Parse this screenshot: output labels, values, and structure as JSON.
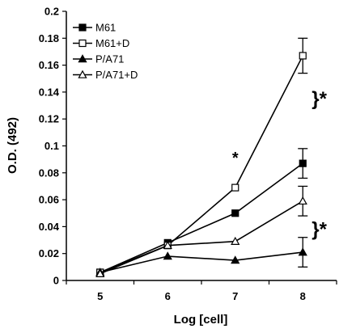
{
  "chart_data": {
    "type": "line",
    "xlabel": "Log [cell]",
    "ylabel": "O.D. (492)",
    "xlim": [
      4.5,
      8.5
    ],
    "ylim": [
      0,
      0.2
    ],
    "x_ticks": [
      "5",
      "6",
      "7",
      "8"
    ],
    "y_ticks": [
      "0",
      "0.02",
      "0.04",
      "0.06",
      "0.08",
      "0.1",
      "0.12",
      "0.14",
      "0.16",
      "0.18",
      "0.2"
    ],
    "grid": false,
    "legend_position": "top-left",
    "series": [
      {
        "name": "M61",
        "marker": "filled-square",
        "x": [
          5,
          6,
          7,
          8
        ],
        "y": [
          0.006,
          0.028,
          0.05,
          0.087
        ],
        "error": [
          null,
          null,
          null,
          0.011
        ]
      },
      {
        "name": "M61+D",
        "marker": "open-square",
        "x": [
          5,
          6,
          7,
          8
        ],
        "y": [
          0.006,
          0.026,
          0.069,
          0.167
        ],
        "error": [
          null,
          null,
          null,
          0.013
        ]
      },
      {
        "name": "P/A71",
        "marker": "filled-triangle",
        "x": [
          5,
          6,
          7,
          8
        ],
        "y": [
          0.006,
          0.018,
          0.015,
          0.021
        ],
        "error": [
          null,
          null,
          null,
          0.011
        ]
      },
      {
        "name": "P/A71+D",
        "marker": "open-triangle",
        "x": [
          5,
          6,
          7,
          8
        ],
        "y": [
          0.005,
          0.026,
          0.029,
          0.059
        ],
        "error": [
          null,
          null,
          null,
          0.011
        ]
      }
    ],
    "annotations": [
      {
        "text": "*",
        "x": 7,
        "y": 0.09
      },
      {
        "text": "}*",
        "x": 8.3,
        "y": 0.135
      },
      {
        "text": "}*",
        "x": 8.3,
        "y": 0.038
      }
    ]
  }
}
